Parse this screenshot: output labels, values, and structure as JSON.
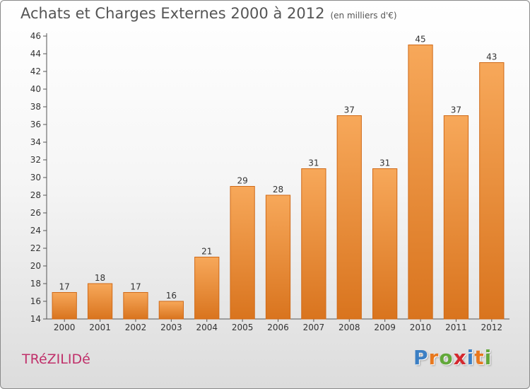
{
  "header": {
    "title": "Achats et Charges Externes 2000 à 2012",
    "subtitle": "(en milliers d'€)"
  },
  "footer": {
    "town": "TRéZILIDé",
    "brand": "Proxiti",
    "brand_colors": [
      "#3b7fc4",
      "#e8781e",
      "#62a83a",
      "#d4282e",
      "#3b7fc4",
      "#e8781e",
      "#62a83a"
    ]
  },
  "chart_data": {
    "type": "bar",
    "title": "Achats et Charges Externes 2000 à 2012",
    "subtitle": "(en milliers d'€)",
    "xlabel": "",
    "ylabel": "",
    "categories": [
      "2000",
      "2001",
      "2002",
      "2003",
      "2004",
      "2005",
      "2006",
      "2007",
      "2008",
      "2009",
      "2010",
      "2011",
      "2012"
    ],
    "values": [
      17,
      18,
      17,
      16,
      21,
      29,
      28,
      31,
      37,
      31,
      45,
      37,
      43
    ],
    "ylim": [
      14,
      46
    ],
    "yticks": [
      14,
      16,
      18,
      20,
      22,
      24,
      26,
      28,
      30,
      32,
      34,
      36,
      38,
      40,
      42,
      44,
      46
    ],
    "grid": false,
    "bar_color_light": "#f7a85a",
    "bar_color_dark": "#d9741e",
    "bar_edge": "#d06a18"
  }
}
